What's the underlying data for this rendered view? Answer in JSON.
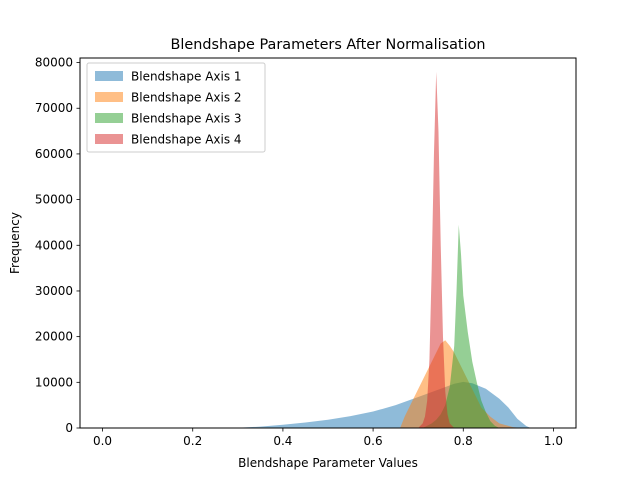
{
  "chart_data": {
    "type": "histogram",
    "title": "Blendshape Parameters After Normalisation",
    "xlabel": "Blendshape Parameter Values",
    "ylabel": "Frequency",
    "xlim": [
      -0.05,
      1.05
    ],
    "ylim": [
      0,
      81000
    ],
    "x_ticks": [
      {
        "value": 0.0,
        "label": "0.0"
      },
      {
        "value": 0.2,
        "label": "0.2"
      },
      {
        "value": 0.4,
        "label": "0.4"
      },
      {
        "value": 0.6,
        "label": "0.6"
      },
      {
        "value": 0.8,
        "label": "0.8"
      },
      {
        "value": 1.0,
        "label": "1.0"
      }
    ],
    "y_ticks": [
      {
        "value": 0,
        "label": "0"
      },
      {
        "value": 10000,
        "label": "10000"
      },
      {
        "value": 20000,
        "label": "20000"
      },
      {
        "value": 30000,
        "label": "30000"
      },
      {
        "value": 40000,
        "label": "40000"
      },
      {
        "value": 50000,
        "label": "50000"
      },
      {
        "value": 60000,
        "label": "60000"
      },
      {
        "value": 70000,
        "label": "70000"
      },
      {
        "value": 80000,
        "label": "80000"
      }
    ],
    "grid": false,
    "legend_position": "top-left",
    "series": [
      {
        "name": "Blendshape Axis 1",
        "color": "#1f77b4",
        "opacity": 0.5,
        "points": [
          [
            0.0,
            0
          ],
          [
            0.3,
            50
          ],
          [
            0.35,
            300
          ],
          [
            0.4,
            700
          ],
          [
            0.45,
            1200
          ],
          [
            0.5,
            1800
          ],
          [
            0.55,
            2600
          ],
          [
            0.6,
            3600
          ],
          [
            0.65,
            5000
          ],
          [
            0.7,
            6800
          ],
          [
            0.75,
            8600
          ],
          [
            0.78,
            9700
          ],
          [
            0.8,
            10100
          ],
          [
            0.82,
            9800
          ],
          [
            0.85,
            8600
          ],
          [
            0.88,
            6400
          ],
          [
            0.9,
            4500
          ],
          [
            0.92,
            2000
          ],
          [
            0.94,
            400
          ],
          [
            0.95,
            0
          ],
          [
            1.0,
            0
          ]
        ]
      },
      {
        "name": "Blendshape Axis 2",
        "color": "#ff7f0e",
        "opacity": 0.5,
        "points": [
          [
            0.66,
            0
          ],
          [
            0.67,
            2500
          ],
          [
            0.68,
            4500
          ],
          [
            0.69,
            6500
          ],
          [
            0.7,
            8500
          ],
          [
            0.71,
            10500
          ],
          [
            0.72,
            12500
          ],
          [
            0.73,
            14500
          ],
          [
            0.74,
            16500
          ],
          [
            0.75,
            18500
          ],
          [
            0.76,
            19200
          ],
          [
            0.77,
            18000
          ],
          [
            0.78,
            16500
          ],
          [
            0.79,
            14500
          ],
          [
            0.8,
            12500
          ],
          [
            0.81,
            10500
          ],
          [
            0.82,
            8500
          ],
          [
            0.83,
            6500
          ],
          [
            0.84,
            4500
          ],
          [
            0.86,
            2500
          ],
          [
            0.88,
            1000
          ],
          [
            0.91,
            200
          ],
          [
            0.93,
            0
          ]
        ]
      },
      {
        "name": "Blendshape Axis 3",
        "color": "#2ca02c",
        "opacity": 0.5,
        "points": [
          [
            0.71,
            0
          ],
          [
            0.72,
            500
          ],
          [
            0.73,
            1000
          ],
          [
            0.74,
            1800
          ],
          [
            0.75,
            3000
          ],
          [
            0.76,
            5000
          ],
          [
            0.77,
            9000
          ],
          [
            0.78,
            18000
          ],
          [
            0.785,
            30000
          ],
          [
            0.79,
            44500
          ],
          [
            0.795,
            38000
          ],
          [
            0.8,
            29000
          ],
          [
            0.81,
            21000
          ],
          [
            0.82,
            14500
          ],
          [
            0.83,
            10000
          ],
          [
            0.84,
            6000
          ],
          [
            0.85,
            3500
          ],
          [
            0.86,
            1500
          ],
          [
            0.87,
            500
          ],
          [
            0.88,
            0
          ]
        ]
      },
      {
        "name": "Blendshape Axis 4",
        "color": "#d62728",
        "opacity": 0.5,
        "points": [
          [
            0.7,
            0
          ],
          [
            0.71,
            1000
          ],
          [
            0.715,
            2500
          ],
          [
            0.72,
            6000
          ],
          [
            0.725,
            15000
          ],
          [
            0.73,
            35000
          ],
          [
            0.735,
            60000
          ],
          [
            0.74,
            78000
          ],
          [
            0.745,
            65000
          ],
          [
            0.75,
            40000
          ],
          [
            0.755,
            20000
          ],
          [
            0.76,
            8000
          ],
          [
            0.765,
            3000
          ],
          [
            0.77,
            1000
          ],
          [
            0.78,
            0
          ]
        ]
      }
    ]
  }
}
